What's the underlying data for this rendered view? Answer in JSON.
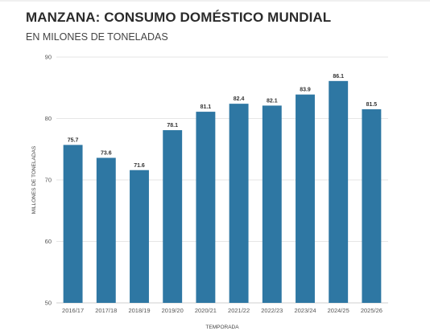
{
  "title": "MANZANA: CONSUMO DOMÉSTICO MUNDIAL",
  "subtitle": "EN MILONES DE TONELADAS",
  "chart_data": {
    "type": "bar",
    "categories": [
      "2016/17",
      "2017/18",
      "2018/19",
      "2019/20",
      "2020/21",
      "2021/22",
      "2022/23",
      "2023/24",
      "2024/25",
      "2025/26"
    ],
    "values": [
      75.7,
      73.6,
      71.6,
      78.1,
      81.1,
      82.4,
      82.1,
      83.9,
      86.1,
      81.5
    ],
    "data_labels": [
      "75.7",
      "73.6",
      "71.6",
      "78.1",
      "81.1",
      "82.4",
      "82.1",
      "83.9",
      "86.1",
      "81.5"
    ],
    "xlabel": "TEMPORADA",
    "ylabel": "MILLONES DE TONELADAS",
    "ylim": [
      50,
      90
    ],
    "yticks": [
      50,
      60,
      70,
      80,
      90
    ],
    "grid": true,
    "legend": "none",
    "bar_color": "#2e77a3"
  }
}
